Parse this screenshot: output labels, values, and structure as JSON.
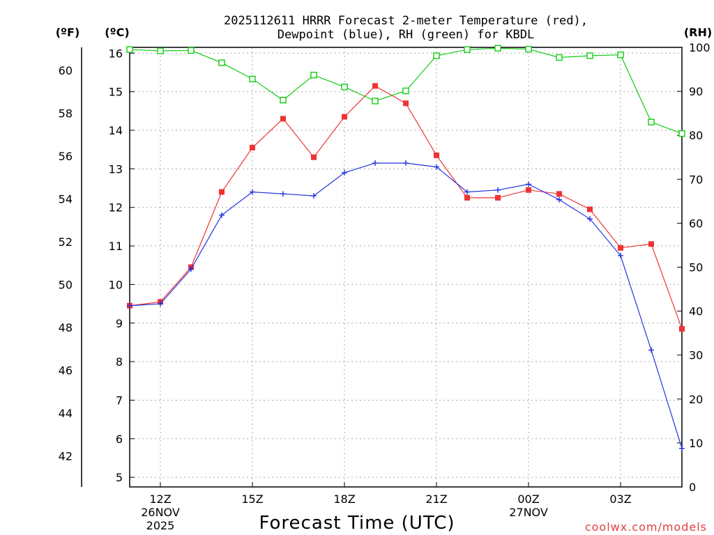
{
  "chart_data": {
    "type": "line",
    "title_line1": "2025112611 HRRR Forecast 2-meter Temperature (red),",
    "title_line2": "Dewpoint (blue), RH (green) for KBDL",
    "left_outer_label": "(ºF)",
    "left_inner_label": "(ºC)",
    "right_label": "(RH)",
    "xlabel": "Forecast Time (UTC)",
    "watermark": "coolwx.com/models",
    "hours": [
      11,
      12,
      13,
      14,
      15,
      16,
      17,
      18,
      19,
      20,
      21,
      22,
      23,
      24,
      25,
      26,
      27,
      28,
      29
    ],
    "xlim": [
      11,
      29
    ],
    "ylim_c": [
      4.75,
      16.15
    ],
    "ylim_rh": [
      0,
      100
    ],
    "x_ticks": [
      {
        "h": 12,
        "lines": [
          "12Z",
          "26NOV",
          "2025"
        ]
      },
      {
        "h": 15,
        "lines": [
          "15Z"
        ]
      },
      {
        "h": 18,
        "lines": [
          "18Z"
        ]
      },
      {
        "h": 21,
        "lines": [
          "21Z"
        ]
      },
      {
        "h": 24,
        "lines": [
          "00Z",
          "27NOV"
        ]
      },
      {
        "h": 27,
        "lines": [
          "03Z"
        ]
      }
    ],
    "c_ticks": [
      "5",
      "6",
      "7",
      "8",
      "9",
      "10",
      "11",
      "12",
      "13",
      "14",
      "15",
      "16"
    ],
    "f_ticks": [
      "42",
      "44",
      "46",
      "48",
      "50",
      "52",
      "54",
      "56",
      "58",
      "60"
    ],
    "rh_ticks": [
      "0",
      "10",
      "20",
      "30",
      "40",
      "50",
      "60",
      "70",
      "80",
      "90",
      "100"
    ],
    "series": [
      {
        "name": "Temperature",
        "unit": "C",
        "color": "#ee3333",
        "marker": "filled-square",
        "values": [
          9.45,
          9.55,
          10.45,
          12.4,
          13.55,
          14.3,
          13.3,
          14.35,
          15.15,
          14.7,
          13.35,
          12.25,
          12.25,
          12.45,
          12.35,
          11.95,
          10.95,
          11.05,
          8.85
        ]
      },
      {
        "name": "Dewpoint",
        "unit": "C",
        "color": "#2233dd",
        "marker": "plus",
        "values": [
          9.45,
          9.5,
          10.4,
          11.8,
          12.4,
          12.35,
          12.3,
          12.9,
          13.15,
          13.15,
          13.05,
          12.4,
          12.45,
          12.6,
          12.2,
          11.7,
          10.75,
          8.3,
          5.75
        ]
      },
      {
        "name": "RH",
        "unit": "%",
        "color": "#11cc11",
        "marker": "open-square",
        "values": [
          99.5,
          99.2,
          99.3,
          96.5,
          92.8,
          88.0,
          93.7,
          91.0,
          87.8,
          90.1,
          98.1,
          99.5,
          99.8,
          99.6,
          97.7,
          98.1,
          98.3,
          83.0,
          80.4
        ]
      }
    ]
  }
}
